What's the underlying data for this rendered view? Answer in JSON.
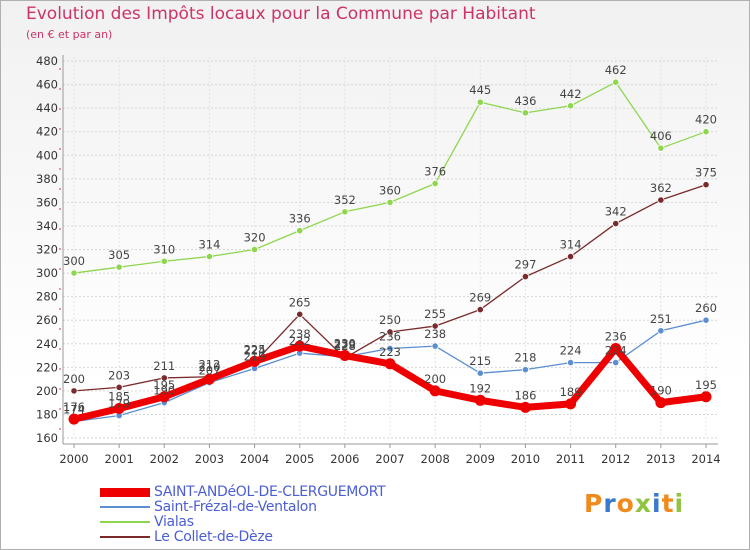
{
  "chart_data": {
    "type": "line",
    "title": "Evolution des Impôts locaux pour la Commune par Habitant",
    "subtitle": "(en € et par an)",
    "xlabel": "",
    "ylabel": "",
    "categories": [
      "2000",
      "2001",
      "2002",
      "2003",
      "2004",
      "2005",
      "2006",
      "2007",
      "2008",
      "2009",
      "2010",
      "2011",
      "2012",
      "2013",
      "2014"
    ],
    "ylim": [
      160,
      480
    ],
    "yticks": [
      160,
      180,
      200,
      220,
      240,
      260,
      280,
      300,
      320,
      340,
      360,
      380,
      400,
      420,
      440,
      460,
      480
    ],
    "grid": true,
    "legend_position": "bottom-left",
    "series": [
      {
        "name": "SAINT-ANDéOL-DE-CLERGUEMORT",
        "color": "#ee0000",
        "width": 7,
        "values": [
          176,
          185,
          195,
          210,
          225,
          238,
          230,
          223,
          200,
          192,
          186,
          189,
          236,
          190,
          195
        ]
      },
      {
        "name": "Saint-Frézal-de-Ventalon",
        "color": "#5b8fd0",
        "width": 1.3,
        "values": [
          174,
          179,
          190,
          207,
          219,
          232,
          229,
          236,
          238,
          215,
          218,
          224,
          224,
          251,
          260
        ]
      },
      {
        "name": "Vialas",
        "color": "#8fd64f",
        "width": 1.3,
        "values": [
          300,
          305,
          310,
          314,
          320,
          336,
          352,
          360,
          376,
          445,
          436,
          442,
          462,
          406,
          420
        ]
      },
      {
        "name": "Le Collet-de-Dèze",
        "color": "#7a2a2a",
        "width": 1.3,
        "values": [
          200,
          203,
          211,
          212,
          224,
          265,
          228,
          250,
          255,
          269,
          297,
          314,
          342,
          362,
          375
        ]
      }
    ]
  },
  "logo": {
    "text": "Proxiti",
    "colors": [
      "#f08a1c",
      "#3a78d0",
      "#f08a1c",
      "#8fc43f",
      "#3a78d0",
      "#f08a1c",
      "#8fc43f"
    ]
  }
}
